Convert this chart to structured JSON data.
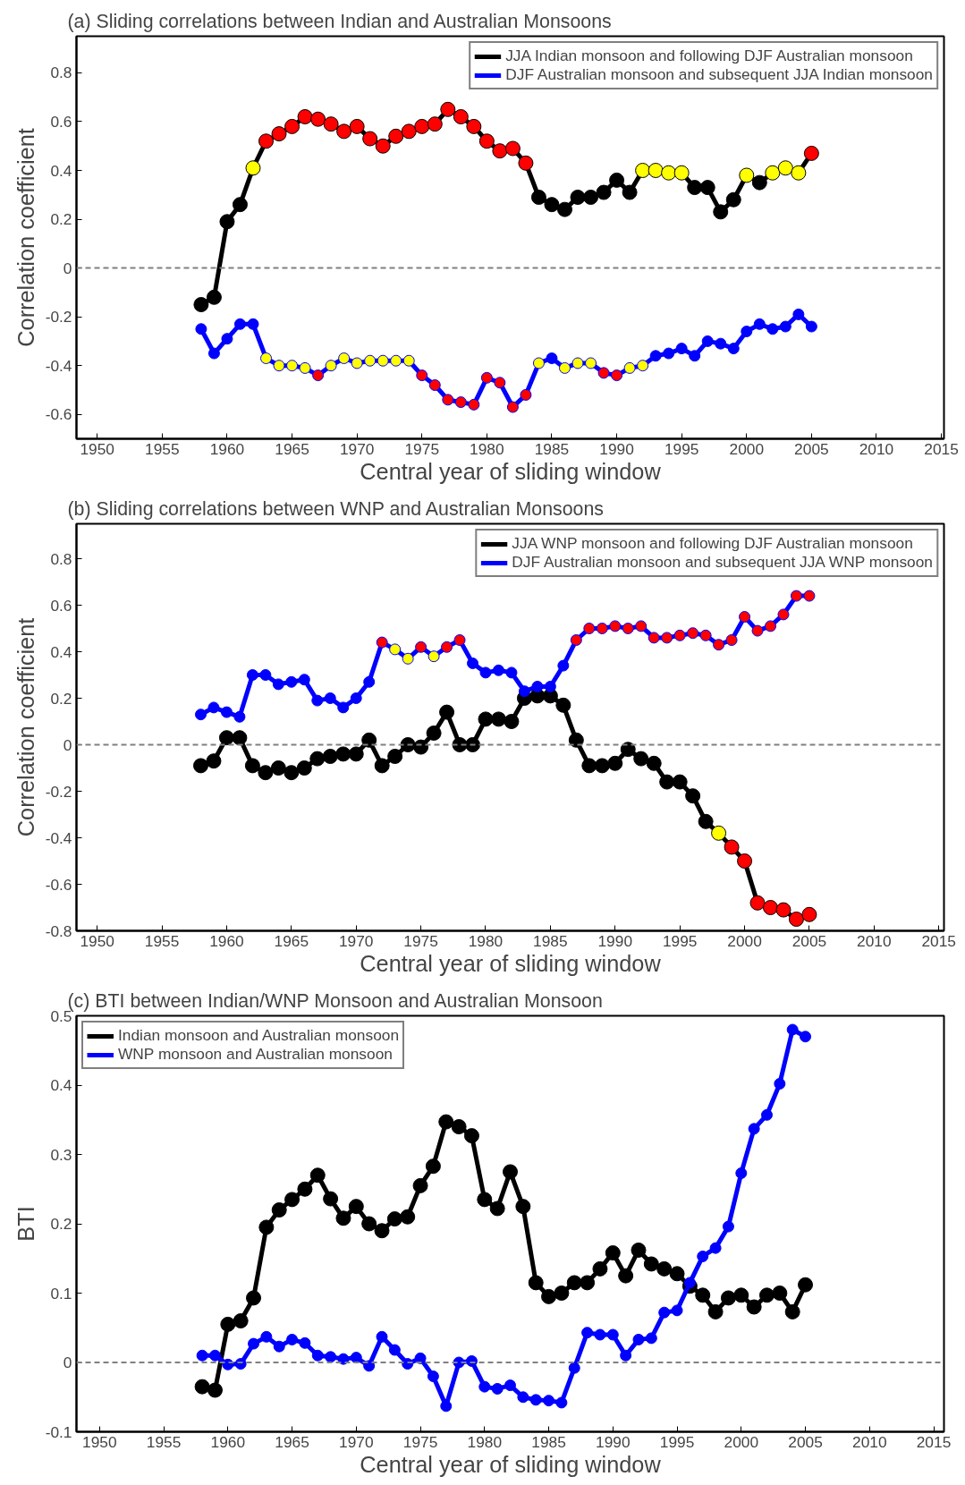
{
  "chart_data": [
    {
      "type": "line",
      "title": "(a) Sliding correlations between Indian and Australian Monsoons",
      "xlabel": "Central year of sliding window",
      "ylabel": "Correlation coefficient",
      "x": [
        1958,
        1959,
        1960,
        1961,
        1962,
        1963,
        1964,
        1965,
        1966,
        1967,
        1968,
        1969,
        1970,
        1971,
        1972,
        1973,
        1974,
        1975,
        1976,
        1977,
        1978,
        1979,
        1980,
        1981,
        1982,
        1983,
        1984,
        1985,
        1986,
        1987,
        1988,
        1989,
        1990,
        1991,
        1992,
        1993,
        1994,
        1995,
        1996,
        1997,
        1998,
        1999,
        2000,
        2001,
        2002,
        2003,
        2004,
        2005
      ],
      "xlim": [
        1948.4,
        2015.2
      ],
      "xticks": [
        1950,
        1955,
        1960,
        1965,
        1970,
        1975,
        1980,
        1985,
        1990,
        1995,
        2000,
        2005,
        2010,
        2015
      ],
      "ylim": [
        -0.7,
        0.95
      ],
      "yticks": [
        -0.6,
        -0.4,
        -0.2,
        0,
        0.2,
        0.4,
        0.6,
        0.8
      ],
      "grid": false,
      "legend": "top right",
      "marker": "circle",
      "line_style": "solid",
      "ref_lines": [
        {
          "axis": "y",
          "value": 0,
          "color": "#808080",
          "line_style": "dashed"
        }
      ],
      "series": [
        {
          "name": "JJA Indian monsoon and following DJF Australian monsoon",
          "color": "#000000",
          "values": [
            -0.15,
            -0.12,
            0.19,
            0.26,
            0.41,
            0.52,
            0.55,
            0.58,
            0.62,
            0.61,
            0.59,
            0.56,
            0.58,
            0.53,
            0.5,
            0.54,
            0.56,
            0.58,
            0.59,
            0.65,
            0.62,
            0.58,
            0.52,
            0.48,
            0.49,
            0.43,
            0.29,
            0.26,
            0.24,
            0.29,
            0.29,
            0.31,
            0.36,
            0.31,
            0.4,
            0.4,
            0.39,
            0.39,
            0.33,
            0.33,
            0.23,
            0.28,
            0.38,
            0.35,
            0.39,
            0.41,
            0.39,
            0.47
          ],
          "colors": [
            "#000000",
            "#000000",
            "#000000",
            "#000000",
            "#ffff00",
            "#ff0000",
            "#ff0000",
            "#ff0000",
            "#ff0000",
            "#ff0000",
            "#ff0000",
            "#ff0000",
            "#ff0000",
            "#ff0000",
            "#ff0000",
            "#ff0000",
            "#ff0000",
            "#ff0000",
            "#ff0000",
            "#ff0000",
            "#ff0000",
            "#ff0000",
            "#ff0000",
            "#ff0000",
            "#ff0000",
            "#ff0000",
            "#000000",
            "#000000",
            "#000000",
            "#000000",
            "#000000",
            "#000000",
            "#000000",
            "#000000",
            "#ffff00",
            "#ffff00",
            "#ffff00",
            "#ffff00",
            "#000000",
            "#000000",
            "#000000",
            "#000000",
            "#ffff00",
            "#000000",
            "#ffff00",
            "#ffff00",
            "#ffff00",
            "#ff0000"
          ]
        },
        {
          "name": "DJF Australian monsoon and subsequent JJA Indian monsoon",
          "color": "#0000ff",
          "values": [
            -0.25,
            -0.35,
            -0.29,
            -0.23,
            -0.23,
            -0.37,
            -0.4,
            -0.4,
            -0.41,
            -0.44,
            -0.4,
            -0.37,
            -0.39,
            -0.38,
            -0.38,
            -0.38,
            -0.38,
            -0.44,
            -0.48,
            -0.54,
            -0.55,
            -0.56,
            -0.45,
            -0.47,
            -0.57,
            -0.52,
            -0.39,
            -0.37,
            -0.41,
            -0.39,
            -0.39,
            -0.43,
            -0.44,
            -0.41,
            -0.4,
            -0.36,
            -0.35,
            -0.33,
            -0.36,
            -0.3,
            -0.31,
            -0.33,
            -0.26,
            -0.23,
            -0.25,
            -0.24,
            -0.19,
            -0.24
          ],
          "colors": [
            "#0000ff",
            "#0000ff",
            "#0000ff",
            "#0000ff",
            "#0000ff",
            "#ffff00",
            "#ffff00",
            "#ffff00",
            "#ffff00",
            "#ff0000",
            "#ffff00",
            "#ffff00",
            "#ffff00",
            "#ffff00",
            "#ffff00",
            "#ffff00",
            "#ffff00",
            "#ff0000",
            "#ff0000",
            "#ff0000",
            "#ff0000",
            "#ff0000",
            "#ff0000",
            "#ff0000",
            "#ff0000",
            "#ff0000",
            "#ffff00",
            "#0000ff",
            "#ffff00",
            "#ffff00",
            "#ffff00",
            "#ff0000",
            "#ff0000",
            "#ffff00",
            "#ffff00",
            "#0000ff",
            "#0000ff",
            "#0000ff",
            "#0000ff",
            "#0000ff",
            "#0000ff",
            "#0000ff",
            "#0000ff",
            "#0000ff",
            "#0000ff",
            "#0000ff",
            "#0000ff",
            "#0000ff"
          ]
        }
      ]
    },
    {
      "type": "line",
      "title": "(b) Sliding correlations between WNP and Australian Monsoons",
      "xlabel": "Central year of sliding window",
      "ylabel": "Correlation coefficient",
      "x": [
        1958,
        1959,
        1960,
        1961,
        1962,
        1963,
        1964,
        1965,
        1966,
        1967,
        1968,
        1969,
        1970,
        1971,
        1972,
        1973,
        1974,
        1975,
        1976,
        1977,
        1978,
        1979,
        1980,
        1981,
        1982,
        1983,
        1984,
        1985,
        1986,
        1987,
        1988,
        1989,
        1990,
        1991,
        1992,
        1993,
        1994,
        1995,
        1996,
        1997,
        1998,
        1999,
        2000,
        2001,
        2002,
        2003,
        2004,
        2005
      ],
      "xlim": [
        1948.4,
        2015.4
      ],
      "xticks": [
        1950,
        1955,
        1960,
        1965,
        1970,
        1975,
        1980,
        1985,
        1990,
        1995,
        2000,
        2005,
        2010,
        2015
      ],
      "ylim": [
        -0.8,
        0.95
      ],
      "yticks": [
        -0.8,
        -0.6,
        -0.4,
        -0.2,
        0,
        0.2,
        0.4,
        0.6,
        0.8
      ],
      "grid": false,
      "legend": "top right",
      "marker": "circle",
      "line_style": "solid",
      "ref_lines": [
        {
          "axis": "y",
          "value": 0,
          "color": "#808080",
          "line_style": "dashed"
        }
      ],
      "series": [
        {
          "name": "JJA WNP monsoon and following DJF Australian monsoon",
          "color": "#000000",
          "values": [
            -0.09,
            -0.07,
            0.03,
            0.03,
            -0.09,
            -0.12,
            -0.1,
            -0.12,
            -0.1,
            -0.06,
            -0.05,
            -0.04,
            -0.04,
            0.02,
            -0.09,
            -0.05,
            0.0,
            -0.01,
            0.05,
            0.14,
            0.0,
            0.0,
            0.11,
            0.11,
            0.1,
            0.2,
            0.21,
            0.21,
            0.17,
            0.02,
            -0.09,
            -0.09,
            -0.08,
            -0.02,
            -0.06,
            -0.08,
            -0.16,
            -0.16,
            -0.22,
            -0.33,
            -0.38,
            -0.44,
            -0.5,
            -0.68,
            -0.7,
            -0.71,
            -0.75,
            -0.73
          ],
          "colors": [
            "#000000",
            "#000000",
            "#000000",
            "#000000",
            "#000000",
            "#000000",
            "#000000",
            "#000000",
            "#000000",
            "#000000",
            "#000000",
            "#000000",
            "#000000",
            "#000000",
            "#000000",
            "#000000",
            "#000000",
            "#000000",
            "#000000",
            "#000000",
            "#000000",
            "#000000",
            "#000000",
            "#000000",
            "#000000",
            "#000000",
            "#000000",
            "#000000",
            "#000000",
            "#000000",
            "#000000",
            "#000000",
            "#000000",
            "#000000",
            "#000000",
            "#000000",
            "#000000",
            "#000000",
            "#000000",
            "#000000",
            "#ffff00",
            "#ff0000",
            "#ff0000",
            "#ff0000",
            "#ff0000",
            "#ff0000",
            "#ff0000",
            "#ff0000"
          ]
        },
        {
          "name": "DJF Australian monsoon and subsequent JJA WNP monsoon",
          "color": "#0000ff",
          "values": [
            0.13,
            0.16,
            0.14,
            0.12,
            0.3,
            0.3,
            0.26,
            0.27,
            0.28,
            0.19,
            0.2,
            0.16,
            0.2,
            0.27,
            0.44,
            0.41,
            0.37,
            0.42,
            0.38,
            0.42,
            0.45,
            0.35,
            0.31,
            0.32,
            0.31,
            0.23,
            0.25,
            0.25,
            0.34,
            0.45,
            0.5,
            0.5,
            0.51,
            0.5,
            0.51,
            0.46,
            0.46,
            0.47,
            0.48,
            0.47,
            0.43,
            0.45,
            0.55,
            0.49,
            0.51,
            0.56,
            0.64,
            0.64
          ],
          "colors": [
            "#0000ff",
            "#0000ff",
            "#0000ff",
            "#0000ff",
            "#0000ff",
            "#0000ff",
            "#0000ff",
            "#0000ff",
            "#0000ff",
            "#0000ff",
            "#0000ff",
            "#0000ff",
            "#0000ff",
            "#0000ff",
            "#ff0000",
            "#ffff00",
            "#ffff00",
            "#ff0000",
            "#ffff00",
            "#ff0000",
            "#ff0000",
            "#0000ff",
            "#0000ff",
            "#0000ff",
            "#0000ff",
            "#0000ff",
            "#0000ff",
            "#0000ff",
            "#0000ff",
            "#ff0000",
            "#ff0000",
            "#ff0000",
            "#ff0000",
            "#ff0000",
            "#ff0000",
            "#ff0000",
            "#ff0000",
            "#ff0000",
            "#ff0000",
            "#ff0000",
            "#ff0000",
            "#ff0000",
            "#ff0000",
            "#ff0000",
            "#ff0000",
            "#ff0000",
            "#ff0000",
            "#ff0000"
          ]
        }
      ]
    },
    {
      "type": "line",
      "title": "(c) BTI between Indian/WNP Monsoon and Australian Monsoon",
      "xlabel": "Central year of sliding window",
      "ylabel": "BTI",
      "x": [
        1958,
        1959,
        1960,
        1961,
        1962,
        1963,
        1964,
        1965,
        1966,
        1967,
        1968,
        1969,
        1970,
        1971,
        1972,
        1973,
        1974,
        1975,
        1976,
        1977,
        1978,
        1979,
        1980,
        1981,
        1982,
        1983,
        1984,
        1985,
        1986,
        1987,
        1988,
        1989,
        1990,
        1991,
        1992,
        1993,
        1994,
        1995,
        1996,
        1997,
        1998,
        1999,
        2000,
        2001,
        2002,
        2003,
        2004,
        2005
      ],
      "xlim": [
        1948.2,
        2015.8
      ],
      "xticks": [
        1950,
        1955,
        1960,
        1965,
        1970,
        1975,
        1980,
        1985,
        1990,
        1995,
        2000,
        2005,
        2010,
        2015
      ],
      "ylim": [
        -0.1,
        0.5
      ],
      "yticks": [
        -0.1,
        0,
        0.1,
        0.2,
        0.3,
        0.4,
        0.5
      ],
      "grid": false,
      "legend": "top left",
      "marker": "circle",
      "line_style": "solid",
      "ref_lines": [
        {
          "axis": "y",
          "value": 0,
          "color": "#808080",
          "line_style": "dashed"
        }
      ],
      "series": [
        {
          "name": "Indian monsoon and Australian monsoon",
          "color": "#000000",
          "values": [
            -0.035,
            -0.04,
            0.055,
            0.06,
            0.093,
            0.195,
            0.22,
            0.235,
            0.25,
            0.27,
            0.236,
            0.208,
            0.225,
            0.2,
            0.19,
            0.207,
            0.21,
            0.255,
            0.283,
            0.347,
            0.34,
            0.327,
            0.235,
            0.222,
            0.275,
            0.225,
            0.115,
            0.095,
            0.1,
            0.115,
            0.115,
            0.135,
            0.158,
            0.125,
            0.162,
            0.142,
            0.135,
            0.128,
            0.11,
            0.097,
            0.073,
            0.093,
            0.097,
            0.08,
            0.097,
            0.1,
            0.073,
            0.112
          ]
        },
        {
          "name": "WNP monsoon and Australian monsoon",
          "color": "#0000ff",
          "values": [
            0.01,
            0.01,
            -0.003,
            -0.002,
            0.027,
            0.037,
            0.023,
            0.033,
            0.028,
            0.01,
            0.008,
            0.005,
            0.007,
            -0.005,
            0.037,
            0.018,
            -0.002,
            0.006,
            -0.02,
            -0.063,
            0.0,
            0.002,
            -0.035,
            -0.038,
            -0.033,
            -0.05,
            -0.054,
            -0.055,
            -0.058,
            -0.008,
            0.043,
            0.04,
            0.04,
            0.01,
            0.033,
            0.035,
            0.072,
            0.075,
            0.115,
            0.153,
            0.165,
            0.196,
            0.273,
            0.337,
            0.357,
            0.402,
            0.48,
            0.47
          ]
        }
      ]
    }
  ]
}
